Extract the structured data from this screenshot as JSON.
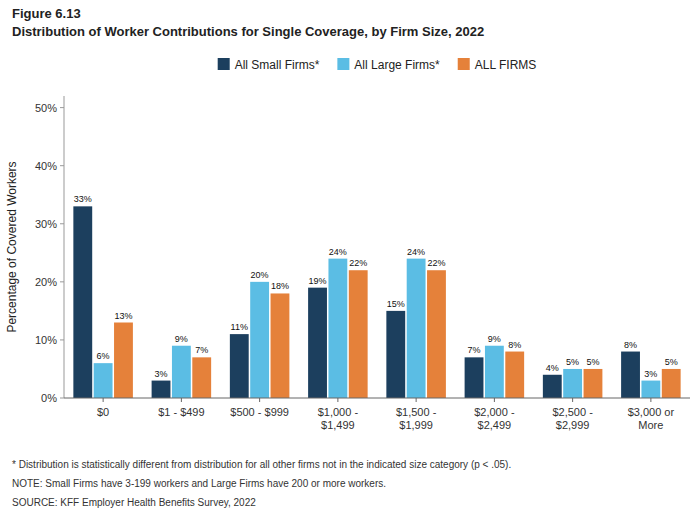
{
  "chart_data": {
    "type": "bar",
    "title": "Distribution of Worker Contributions for Single Coverage, by Firm Size, 2022",
    "annotations": [
      "Figure 6.13",
      "* Distribution is statistically different from distribution for all other firms not in the indicated size category (p < .05).",
      "NOTE: Small Firms have 3-199 workers and Large Firms have 200 or more workers.",
      "SOURCE: KFF Employer Health Benefits Survey, 2022"
    ],
    "y_label": "Percentage of Covered Workers",
    "categories": [
      "$0",
      "$1 - $499",
      "$500 - $999",
      "$1,000 -\n$1,499",
      "$1,500 -\n$1,999",
      "$2,000 -\n$2,499",
      "$2,500 -\n$2,999",
      "$3,000 or\nMore"
    ],
    "series": [
      {
        "name": "All Small Firms*",
        "color": "#1c3f5e",
        "values": [
          33,
          3,
          11,
          19,
          15,
          7,
          4,
          8
        ],
        "value_labels": [
          "33%",
          "3%",
          "11%",
          "19%",
          "15%",
          "7%",
          "4%",
          "8%"
        ]
      },
      {
        "name": "All Large Firms*",
        "color": "#5bbde4",
        "values": [
          6,
          9,
          20,
          24,
          24,
          9,
          5,
          3
        ],
        "value_labels": [
          "6%",
          "9%",
          "20%",
          "24%",
          "24%",
          "9%",
          "5%",
          "3%"
        ]
      },
      {
        "name": "ALL FIRMS",
        "color": "#e5813a",
        "values": [
          13,
          7,
          18,
          22,
          22,
          8,
          5,
          5
        ],
        "value_labels": [
          "13%",
          "7%",
          "18%",
          "22%",
          "22%",
          "8%",
          "5%",
          "5%"
        ]
      }
    ],
    "ylim": [
      0,
      52
    ],
    "yticks": [
      {
        "value": 0,
        "label": "0%"
      },
      {
        "value": 10,
        "label": "10%"
      },
      {
        "value": 20,
        "label": "20%"
      },
      {
        "value": 30,
        "label": "30%"
      },
      {
        "value": 40,
        "label": "40%"
      },
      {
        "value": 50,
        "label": "50%"
      }
    ],
    "grid": false,
    "legend": "top",
    "data_labels": true
  }
}
